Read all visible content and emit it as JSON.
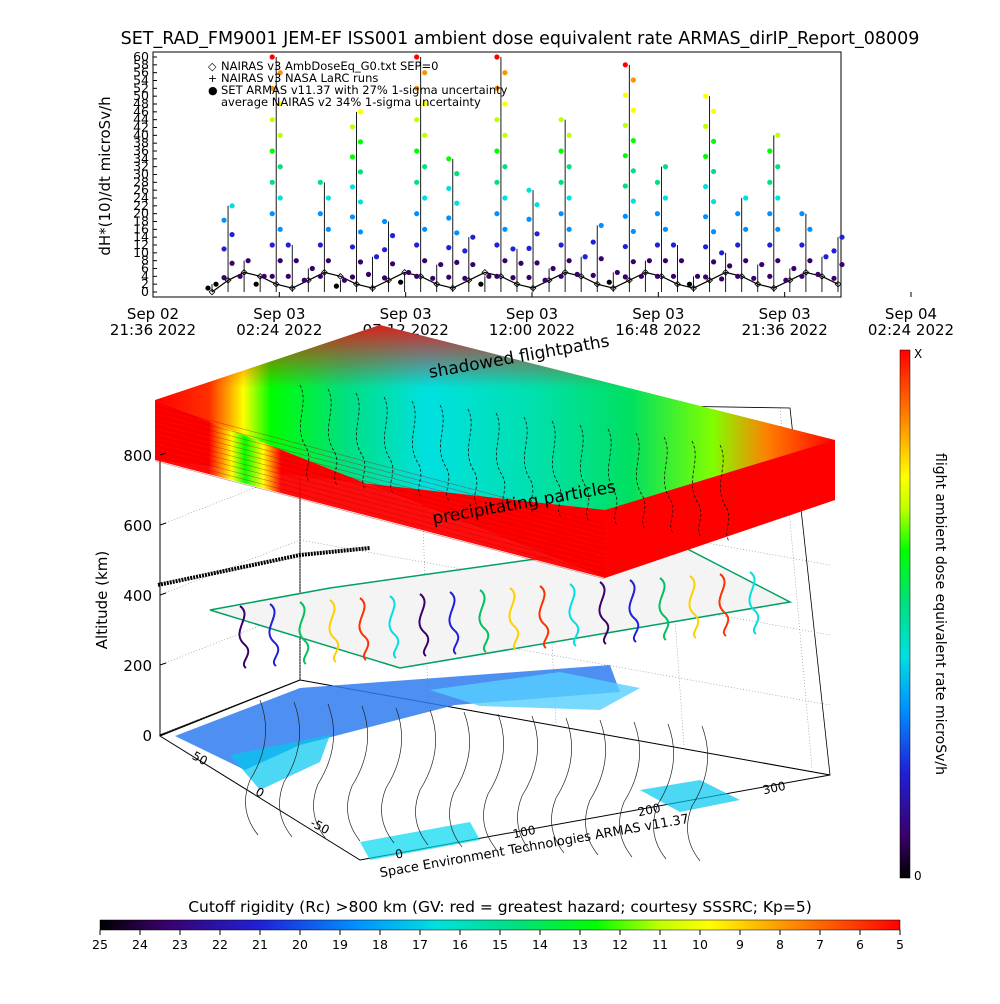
{
  "title": "SET_RAD_FM9001  JEM-EF ISS001 ambient dose equivalent rate ARMAS_dirIP_Report_08009",
  "chart_data": [
    {
      "type": "line",
      "ylabel": "dH*(10)/dt microSv/h",
      "yticks": [
        "0",
        "2",
        "4",
        "6",
        "8",
        "10",
        "12",
        "14",
        "16",
        "18",
        "20",
        "22",
        "24",
        "26",
        "28",
        "30",
        "32",
        "34",
        "36",
        "38",
        "40",
        "42",
        "44",
        "46",
        "48",
        "50",
        "52",
        "54",
        "56",
        "58",
        "60"
      ],
      "ylim": [
        0,
        60
      ],
      "xticks": [
        {
          "l1": "Sep 02",
          "l2": "21:36 2022"
        },
        {
          "l1": "Sep 03",
          "l2": "02:24 2022"
        },
        {
          "l1": "Sep 03",
          "l2": "07:12 2022"
        },
        {
          "l1": "Sep 03",
          "l2": "12:00 2022"
        },
        {
          "l1": "Sep 03",
          "l2": "16:48 2022"
        },
        {
          "l1": "Sep 03",
          "l2": "21:36 2022"
        },
        {
          "l1": "Sep 04",
          "l2": "02:24 2022"
        }
      ],
      "legend": [
        {
          "symbol": "◇",
          "text": "NAIRAS v3 AmbDoseEq_G0.txt SEP=0"
        },
        {
          "symbol": "+",
          "text": "NAIRAS v3 NASA LaRC runs"
        },
        {
          "symbol": "●",
          "text": "SET ARMAS v11.37 with 27% 1-sigma uncertainty"
        },
        {
          "symbol": "",
          "text": "average NAIRAS v2 34% 1-sigma uncertainty"
        }
      ],
      "series": [
        {
          "name": "NAIRAS v3 AmbDoseEq_G0.txt SEP=0",
          "values": [
            0,
            3,
            5,
            4,
            2,
            1,
            3,
            5,
            4,
            2,
            1,
            3,
            5,
            4,
            2,
            1,
            3,
            5,
            4,
            2,
            1,
            3,
            5,
            4,
            2,
            1,
            3,
            5,
            4,
            2,
            1,
            3,
            5,
            4,
            2,
            1,
            3,
            5,
            4,
            2
          ]
        },
        {
          "name": "SET ARMAS v11.37 with 27% 1-sigma uncertainty",
          "values": [
            2,
            22,
            8,
            4,
            60,
            12,
            6,
            28,
            3,
            46,
            9,
            18,
            5,
            60,
            7,
            34,
            14,
            4,
            60,
            11,
            26,
            6,
            44,
            9,
            17,
            5,
            58,
            8,
            32,
            12,
            4,
            50,
            10,
            24,
            7,
            40,
            6,
            20,
            9,
            14
          ]
        }
      ]
    },
    {
      "type": "heatmap",
      "ylabel": "Altitude (km)",
      "yticks": [
        "0",
        "200",
        "400",
        "600",
        "800"
      ],
      "yticks_values": [
        0,
        200,
        400,
        600,
        800
      ],
      "lon_ticks": [
        "0",
        "100",
        "200",
        "300"
      ],
      "lat_ticks": [
        "50",
        "0",
        "-50"
      ],
      "annotations": {
        "top": "shadowed flightpaths",
        "middle": "precipitating particles",
        "credit": "Space Environment Technologies ARMAS v11.37"
      },
      "colorbar": {
        "title": "flight ambient dose equivalent rate microSv/h",
        "max_label": "X",
        "min_label": "0"
      }
    },
    {
      "type": "heatmap",
      "title": "Cutoff rigidity (Rc) >800 km (GV: red = greatest hazard; courtesy SSSRC; Kp=5)",
      "ticks": [
        "25",
        "24",
        "23",
        "22",
        "21",
        "20",
        "19",
        "18",
        "17",
        "16",
        "15",
        "14",
        "13",
        "12",
        "11",
        "10",
        "9",
        "8",
        "7",
        "6",
        "5"
      ]
    }
  ],
  "colors": {
    "scale": [
      "#000000",
      "#3a006a",
      "#2020d8",
      "#0090ff",
      "#00e0e0",
      "#00e080",
      "#00ff00",
      "#c0ff00",
      "#ffff00",
      "#ff9000",
      "#ff0000"
    ],
    "axis": "#000000"
  }
}
